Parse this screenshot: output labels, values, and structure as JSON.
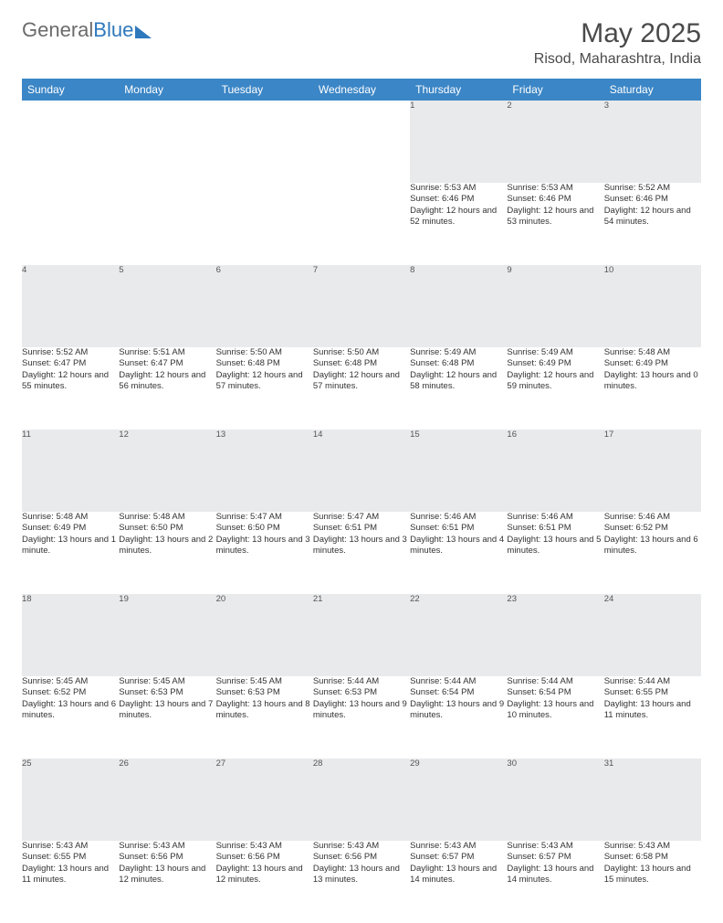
{
  "logo": {
    "part1": "General",
    "part2": "Blue"
  },
  "title": "May 2025",
  "location": "Risod, Maharashtra, India",
  "colors": {
    "header_bg": "#3b86c6",
    "header_text": "#ffffff",
    "daynum_bg": "#e9eaec",
    "text": "#333333",
    "logo_gray": "#6b6b6b",
    "logo_blue": "#2e78bd"
  },
  "weekdays": [
    "Sunday",
    "Monday",
    "Tuesday",
    "Wednesday",
    "Thursday",
    "Friday",
    "Saturday"
  ],
  "weeks": [
    [
      null,
      null,
      null,
      null,
      {
        "n": "1",
        "sr": "5:53 AM",
        "ss": "6:46 PM",
        "dl": "12 hours and 52 minutes."
      },
      {
        "n": "2",
        "sr": "5:53 AM",
        "ss": "6:46 PM",
        "dl": "12 hours and 53 minutes."
      },
      {
        "n": "3",
        "sr": "5:52 AM",
        "ss": "6:46 PM",
        "dl": "12 hours and 54 minutes."
      }
    ],
    [
      {
        "n": "4",
        "sr": "5:52 AM",
        "ss": "6:47 PM",
        "dl": "12 hours and 55 minutes."
      },
      {
        "n": "5",
        "sr": "5:51 AM",
        "ss": "6:47 PM",
        "dl": "12 hours and 56 minutes."
      },
      {
        "n": "6",
        "sr": "5:50 AM",
        "ss": "6:48 PM",
        "dl": "12 hours and 57 minutes."
      },
      {
        "n": "7",
        "sr": "5:50 AM",
        "ss": "6:48 PM",
        "dl": "12 hours and 57 minutes."
      },
      {
        "n": "8",
        "sr": "5:49 AM",
        "ss": "6:48 PM",
        "dl": "12 hours and 58 minutes."
      },
      {
        "n": "9",
        "sr": "5:49 AM",
        "ss": "6:49 PM",
        "dl": "12 hours and 59 minutes."
      },
      {
        "n": "10",
        "sr": "5:48 AM",
        "ss": "6:49 PM",
        "dl": "13 hours and 0 minutes."
      }
    ],
    [
      {
        "n": "11",
        "sr": "5:48 AM",
        "ss": "6:49 PM",
        "dl": "13 hours and 1 minute."
      },
      {
        "n": "12",
        "sr": "5:48 AM",
        "ss": "6:50 PM",
        "dl": "13 hours and 2 minutes."
      },
      {
        "n": "13",
        "sr": "5:47 AM",
        "ss": "6:50 PM",
        "dl": "13 hours and 3 minutes."
      },
      {
        "n": "14",
        "sr": "5:47 AM",
        "ss": "6:51 PM",
        "dl": "13 hours and 3 minutes."
      },
      {
        "n": "15",
        "sr": "5:46 AM",
        "ss": "6:51 PM",
        "dl": "13 hours and 4 minutes."
      },
      {
        "n": "16",
        "sr": "5:46 AM",
        "ss": "6:51 PM",
        "dl": "13 hours and 5 minutes."
      },
      {
        "n": "17",
        "sr": "5:46 AM",
        "ss": "6:52 PM",
        "dl": "13 hours and 6 minutes."
      }
    ],
    [
      {
        "n": "18",
        "sr": "5:45 AM",
        "ss": "6:52 PM",
        "dl": "13 hours and 6 minutes."
      },
      {
        "n": "19",
        "sr": "5:45 AM",
        "ss": "6:53 PM",
        "dl": "13 hours and 7 minutes."
      },
      {
        "n": "20",
        "sr": "5:45 AM",
        "ss": "6:53 PM",
        "dl": "13 hours and 8 minutes."
      },
      {
        "n": "21",
        "sr": "5:44 AM",
        "ss": "6:53 PM",
        "dl": "13 hours and 9 minutes."
      },
      {
        "n": "22",
        "sr": "5:44 AM",
        "ss": "6:54 PM",
        "dl": "13 hours and 9 minutes."
      },
      {
        "n": "23",
        "sr": "5:44 AM",
        "ss": "6:54 PM",
        "dl": "13 hours and 10 minutes."
      },
      {
        "n": "24",
        "sr": "5:44 AM",
        "ss": "6:55 PM",
        "dl": "13 hours and 11 minutes."
      }
    ],
    [
      {
        "n": "25",
        "sr": "5:43 AM",
        "ss": "6:55 PM",
        "dl": "13 hours and 11 minutes."
      },
      {
        "n": "26",
        "sr": "5:43 AM",
        "ss": "6:56 PM",
        "dl": "13 hours and 12 minutes."
      },
      {
        "n": "27",
        "sr": "5:43 AM",
        "ss": "6:56 PM",
        "dl": "13 hours and 12 minutes."
      },
      {
        "n": "28",
        "sr": "5:43 AM",
        "ss": "6:56 PM",
        "dl": "13 hours and 13 minutes."
      },
      {
        "n": "29",
        "sr": "5:43 AM",
        "ss": "6:57 PM",
        "dl": "13 hours and 14 minutes."
      },
      {
        "n": "30",
        "sr": "5:43 AM",
        "ss": "6:57 PM",
        "dl": "13 hours and 14 minutes."
      },
      {
        "n": "31",
        "sr": "5:43 AM",
        "ss": "6:58 PM",
        "dl": "13 hours and 15 minutes."
      }
    ]
  ],
  "labels": {
    "sunrise": "Sunrise: ",
    "sunset": "Sunset: ",
    "daylight": "Daylight: "
  }
}
